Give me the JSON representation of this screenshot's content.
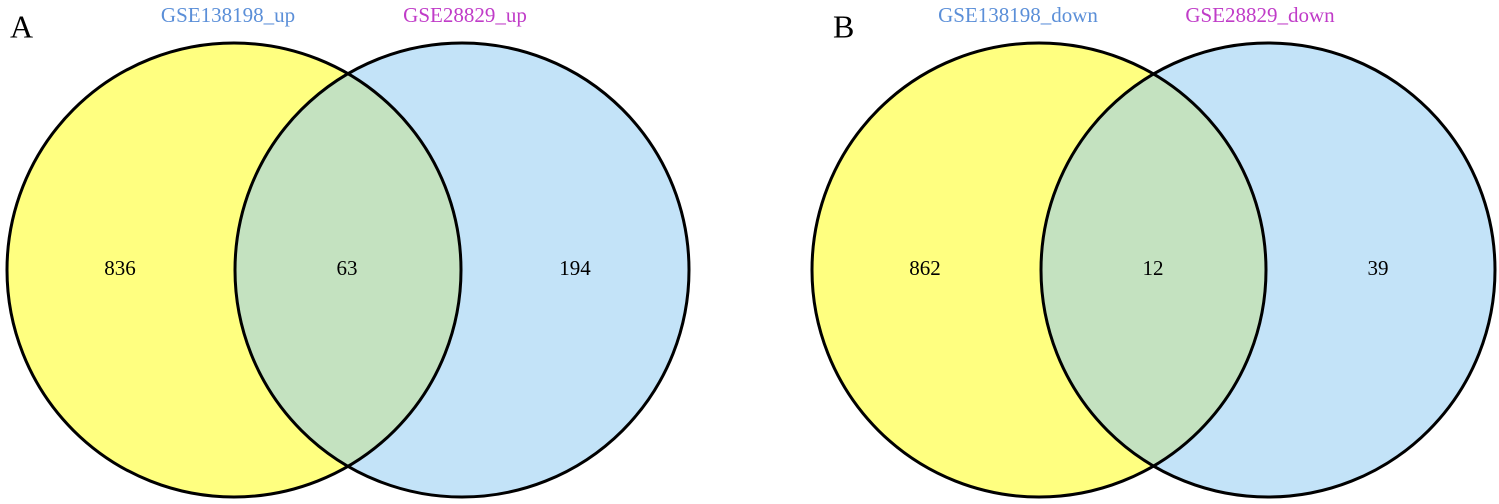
{
  "panels": [
    {
      "label": "A",
      "sets": [
        "GSE138198_up",
        "GSE28829_up"
      ],
      "regions": [
        836,
        63,
        194
      ]
    },
    {
      "label": "B",
      "sets": [
        "GSE138198_down",
        "GSE28829_down"
      ],
      "regions": [
        862,
        12,
        39
      ]
    }
  ]
}
